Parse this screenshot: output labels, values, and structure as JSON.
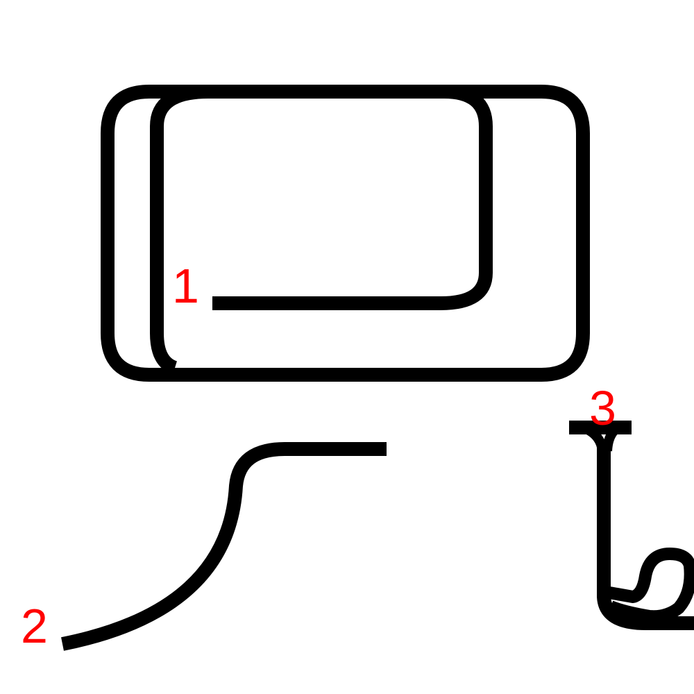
{
  "colors": {
    "background": "#ffffff",
    "stroke": "#000000",
    "label": "#ff0000"
  },
  "labels": {
    "path_1": "1",
    "path_2": "2",
    "path_3": "3"
  }
}
